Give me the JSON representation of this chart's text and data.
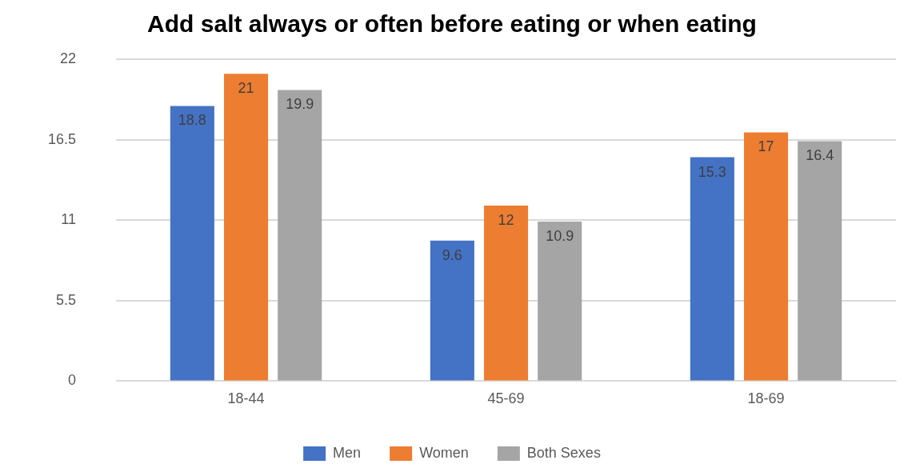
{
  "chart_data": {
    "type": "bar",
    "title": "Add salt always or often before eating or when eating",
    "categories": [
      "18-44",
      "45-69",
      "18-69"
    ],
    "series": [
      {
        "name": "Men",
        "color": "#4472c4",
        "values": [
          18.8,
          9.6,
          15.3
        ]
      },
      {
        "name": "Women",
        "color": "#ed7d31",
        "values": [
          21,
          12,
          17
        ]
      },
      {
        "name": "Both Sexes",
        "color": "#a5a5a5",
        "values": [
          19.9,
          10.9,
          16.4
        ]
      }
    ],
    "ylim": [
      0,
      22
    ],
    "yticks": [
      0,
      5.5,
      11,
      16.5,
      22
    ],
    "grid": "y",
    "legend": "bottom",
    "data_labels": true
  }
}
